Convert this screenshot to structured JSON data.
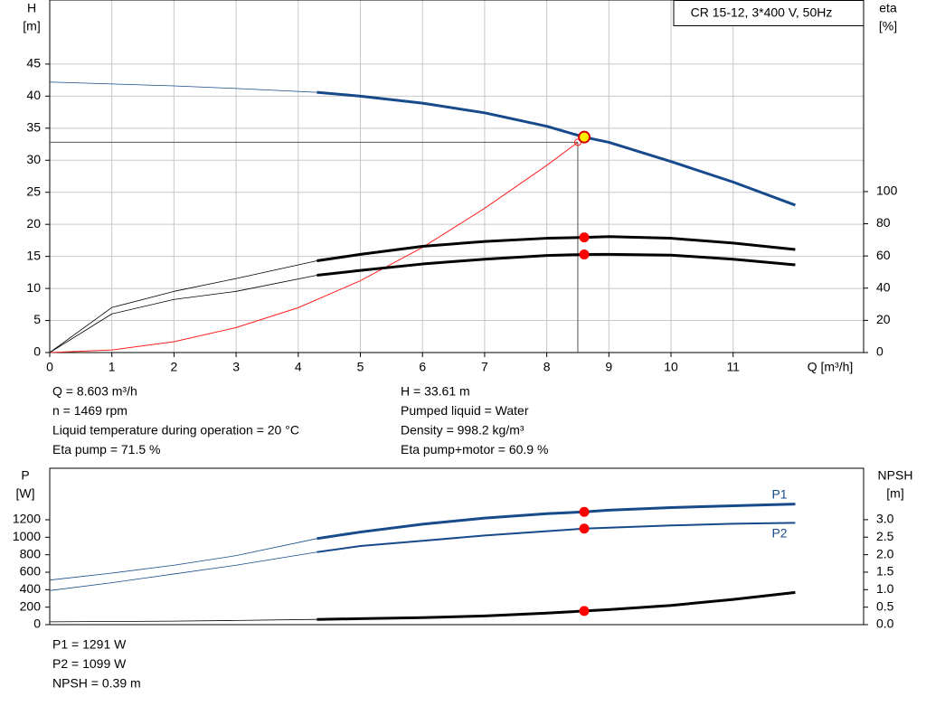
{
  "chart_data": [
    {
      "type": "line",
      "y_label": "H",
      "y_unit": "[m]",
      "y2_label": "eta",
      "y2_unit": "[%]",
      "x_label": "Q [m³/h]",
      "legend_box": "CR 15-12, 3*400 V, 50Hz",
      "xlim": [
        0,
        13.1
      ],
      "xticks": [
        0,
        1,
        2,
        3,
        4,
        5,
        6,
        7,
        8,
        9,
        10,
        11
      ],
      "ylim": [
        0,
        55
      ],
      "yticks": [
        0,
        5,
        10,
        15,
        20,
        25,
        30,
        35,
        40,
        45
      ],
      "y2lim": [
        0,
        219
      ],
      "y2ticks": [
        0,
        20,
        40,
        60,
        80,
        100
      ],
      "grid": true,
      "x": [
        0,
        1,
        2,
        3,
        4.3,
        5,
        6,
        7,
        8,
        8.603,
        9,
        10,
        11,
        12
      ],
      "series": [
        {
          "color": "#174a8b",
          "values": [
            42.2,
            41.9,
            41.6,
            41.2,
            40.6,
            40.0,
            38.9,
            37.4,
            35.3,
            33.61,
            32.8,
            29.8,
            26.6,
            23.0
          ]
        },
        {
          "color": "#000000",
          "axis": "y2",
          "values": [
            0,
            28,
            38,
            46,
            57,
            61,
            66,
            69,
            71,
            71.5,
            72,
            71,
            68,
            64
          ]
        },
        {
          "color": "#000000",
          "axis": "y2",
          "values": [
            0,
            24,
            33,
            38,
            48,
            51,
            55,
            58,
            60.3,
            60.9,
            61,
            60.5,
            58,
            54.5
          ]
        }
      ],
      "system_curve": {
        "color": "#ff2020",
        "x": [
          0,
          1,
          2,
          3,
          4,
          5,
          6,
          7,
          8,
          8.5
        ],
        "values": [
          0,
          0.4,
          1.7,
          3.9,
          7.0,
          11.2,
          16.4,
          22.5,
          29.2,
          32.8
        ]
      }
    },
    {
      "type": "line",
      "y_label": "P",
      "y_unit": "[W]",
      "y2_label": "NPSH",
      "y2_unit": "[m]",
      "xlim": [
        0,
        13.1
      ],
      "ylim": [
        0,
        1790
      ],
      "yticks": [
        0,
        200,
        400,
        600,
        800,
        1000,
        1200
      ],
      "y2lim": [
        0,
        4.47
      ],
      "y2ticks": [
        {
          "value": 0,
          "label": "0.0"
        },
        0.5,
        {
          "value": 1,
          "label": "1.0"
        },
        1.5,
        {
          "value": 2,
          "label": "2.0"
        },
        2.5,
        {
          "value": 3,
          "label": "3.0"
        }
      ],
      "x": [
        0,
        1,
        2,
        3,
        4.3,
        5,
        6,
        7,
        8,
        8.603,
        9,
        10,
        11,
        12
      ],
      "series": [
        {
          "name": "P1",
          "color": "#174a8b",
          "values": [
            510,
            590,
            680,
            790,
            985,
            1060,
            1150,
            1220,
            1270,
            1291,
            1310,
            1340,
            1360,
            1380
          ]
        },
        {
          "name": "P2",
          "color": "#174a8b",
          "values": [
            390,
            480,
            580,
            680,
            830,
            900,
            960,
            1020,
            1070,
            1099,
            1110,
            1135,
            1155,
            1165
          ]
        },
        {
          "color": "#000000",
          "axis": "y2",
          "values": [
            0.08,
            0.09,
            0.1,
            0.12,
            0.15,
            0.17,
            0.2,
            0.25,
            0.33,
            0.39,
            0.43,
            0.55,
            0.72,
            0.92
          ]
        }
      ]
    }
  ],
  "info_top_left": [
    "Q = 8.603 m³/h",
    "n = 1469 rpm",
    "Liquid temperature during operation = 20 °C",
    "Eta pump = 71.5 %"
  ],
  "info_top_right": [
    "H = 33.61 m",
    "Pumped liquid = Water",
    "Density = 998.2 kg/m³",
    "Eta pump+motor = 60.9 %"
  ],
  "info_bottom": [
    "P1 = 1291 W",
    "P2 = 1099 W",
    "NPSH = 0.39 m"
  ]
}
